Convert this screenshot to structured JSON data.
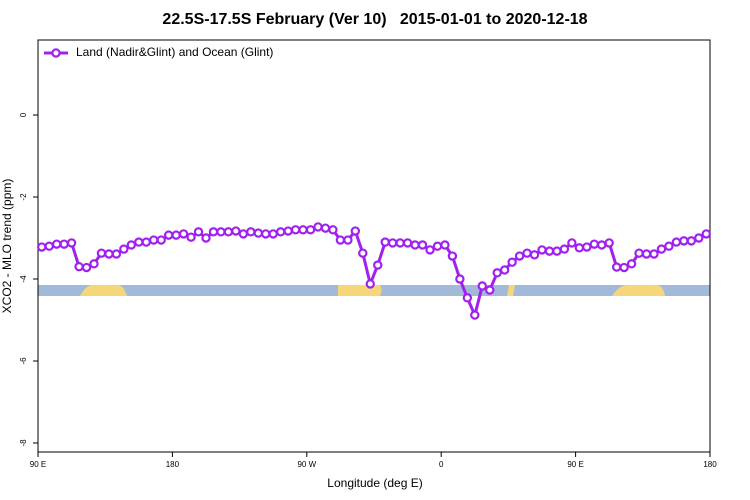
{
  "chart_data": {
    "type": "line",
    "title": "22.5S-17.5S February (Ver 10)   2015-01-01 to 2020-12-18",
    "x_label": "Longitude (deg E)",
    "y_label": "XCO2 - MLO trend (ppm)",
    "xlim": [
      90,
      540
    ],
    "ylim": [
      -8.22,
      1.83
    ],
    "xticks": [
      {
        "value": 90,
        "label": "90 E"
      },
      180,
      {
        "value": 270,
        "label": "90 W"
      },
      {
        "value": 360,
        "label": "0"
      },
      {
        "value": 450,
        "label": "90 E"
      },
      {
        "value": 540,
        "label": "180"
      }
    ],
    "yticks": [
      0,
      -2,
      -4,
      -6,
      -8
    ],
    "legend": "top-left",
    "x": [
      92.5,
      97.5,
      102.5,
      107.5,
      112.5,
      117.5,
      122.5,
      127.5,
      132.5,
      137.5,
      142.5,
      147.5,
      152.5,
      157.5,
      162.5,
      167.5,
      172.5,
      177.5,
      182.5,
      187.5,
      192.5,
      197.5,
      202.5,
      207.5,
      212.5,
      217.5,
      222.5,
      227.5,
      232.5,
      237.5,
      242.5,
      247.5,
      252.5,
      257.5,
      262.5,
      267.5,
      272.5,
      277.5,
      282.5,
      287.5,
      292.5,
      297.5,
      302.5,
      307.5,
      312.5,
      317.5,
      322.5,
      327.5,
      332.5,
      337.5,
      342.5,
      347.5,
      352.5,
      357.5,
      362.5,
      367.5,
      372.5,
      377.5,
      382.5,
      387.5,
      392.5,
      397.5,
      402.5,
      407.5,
      412.5,
      417.5,
      422.5,
      427.5,
      432.5,
      437.5,
      442.5,
      447.5,
      452.5,
      457.5,
      462.5,
      467.5,
      472.5,
      477.5,
      482.5,
      487.5,
      492.5,
      497.5,
      502.5,
      507.5,
      512.5,
      517.5,
      522.5,
      527.5,
      532.5,
      537.5
    ],
    "series": [
      {
        "name": "Land (Nadir&Glint) and Ocean (Glint)",
        "color": "#a020f0",
        "values": [
          -3.22,
          -3.2,
          -3.15,
          -3.15,
          -3.12,
          -3.7,
          -3.72,
          -3.63,
          -3.37,
          -3.39,
          -3.39,
          -3.27,
          -3.17,
          -3.1,
          -3.1,
          -3.05,
          -3.05,
          -2.93,
          -2.93,
          -2.9,
          -2.98,
          -2.85,
          -3.0,
          -2.85,
          -2.85,
          -2.85,
          -2.83,
          -2.9,
          -2.85,
          -2.88,
          -2.9,
          -2.9,
          -2.85,
          -2.83,
          -2.8,
          -2.8,
          -2.8,
          -2.73,
          -2.76,
          -2.8,
          -3.05,
          -3.05,
          -2.83,
          -3.37,
          -4.12,
          -3.66,
          -3.1,
          -3.12,
          -3.12,
          -3.12,
          -3.17,
          -3.17,
          -3.29,
          -3.2,
          -3.17,
          -3.44,
          -4.0,
          -4.46,
          -4.88,
          -4.17,
          -4.27,
          -3.85,
          -3.78,
          -3.59,
          -3.44,
          -3.37,
          -3.41,
          -3.29,
          -3.32,
          -3.32,
          -3.27,
          -3.12,
          -3.24,
          -3.22,
          -3.15,
          -3.17,
          -3.12,
          -3.71,
          -3.72,
          -3.63,
          -3.37,
          -3.39,
          -3.39,
          -3.27,
          -3.2,
          -3.1,
          -3.07,
          -3.07,
          -3.0,
          -2.9
        ]
      }
    ]
  }
}
